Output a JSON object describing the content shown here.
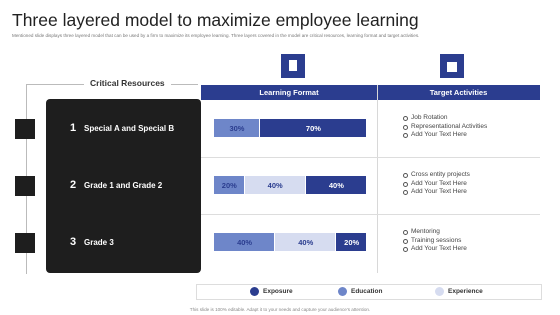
{
  "header": {
    "title": "Three layered model to maximize employee learning",
    "subtitle": "Mentioned slide displays three layered model that can be used by a firm to maximize its employee learning. Three layers covered in the model are critical resources, learning format and target activities."
  },
  "table": {
    "columns": [
      "Critical Resources",
      "Learning Format",
      "Target Activities"
    ],
    "rows": [
      {
        "number": "1",
        "resource": "Special A and Special B",
        "segments": [
          {
            "legend": 1,
            "value": 30,
            "label": "30%"
          },
          {
            "legend": 0,
            "value": 70,
            "label": "70%"
          }
        ],
        "activities": [
          "Job Rotation",
          "Representational Activities",
          "Add Your Text Here"
        ]
      },
      {
        "number": "2",
        "resource": "Grade 1 and Grade 2",
        "segments": [
          {
            "legend": 1,
            "value": 20,
            "label": "20%"
          },
          {
            "legend": 2,
            "value": 40,
            "label": "40%"
          },
          {
            "legend": 0,
            "value": 40,
            "label": "40%"
          }
        ],
        "activities": [
          "Cross entity projects",
          "Add Your Text Here",
          "Add Your Text Here"
        ]
      },
      {
        "number": "3",
        "resource": "Grade 3",
        "segments": [
          {
            "legend": 1,
            "value": 40,
            "label": "40%"
          },
          {
            "legend": 2,
            "value": 40,
            "label": "40%"
          },
          {
            "legend": 0,
            "value": 20,
            "label": "20%"
          }
        ],
        "activities": [
          "Mentoring",
          "Training sessions",
          "Add Your Text Here"
        ]
      }
    ]
  },
  "legend": [
    {
      "name": "Exposure",
      "color": "#2b3d8f"
    },
    {
      "name": "Education",
      "color": "#6e86c9"
    },
    {
      "name": "Experience",
      "color": "#d6dcf0"
    }
  ],
  "footer": "This slide is 100% editable. Adapt it to your needs and capture your audience's attention."
}
